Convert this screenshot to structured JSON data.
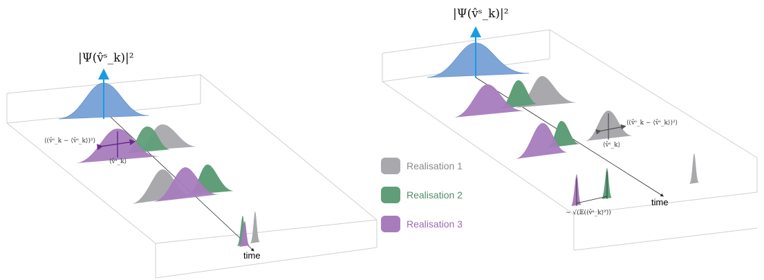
{
  "left_panel": {
    "axis_label": "|Ψ(v̂ˢ_k)|²",
    "spread_label": "⟨(v̂ˢ_k − ⟨v̂ˢ_k⟩)²⟩",
    "mean_label": "⟨v̂ˢ_k⟩",
    "time_label": "time"
  },
  "right_panel": {
    "axis_label": "|Ψ(v̂ˢ_k)|²",
    "spread_label": "⟨(v̂ˢ_k − ⟨v̂ˢ_k⟩)²⟩",
    "mean_label": "⟨v̂ˢ_k⟩",
    "time_label": "time",
    "scaling_label": "∼ √(𝔼(⟨v̂ˢ_k⟩²))"
  },
  "legend": [
    {
      "label": "Realisation 1",
      "color": "#a9a8ad"
    },
    {
      "label": "Realisation 2",
      "color": "#5f9e78"
    },
    {
      "label": "Realisation 3",
      "color": "#a77cbd"
    }
  ],
  "colors": {
    "initial": "#7ea5d8",
    "axis_arrow": "#1a9be0",
    "realisation_1": "#a9a8ad",
    "realisation_2": "#5f9e78",
    "realisation_3": "#a77cbd",
    "box_edge": "#cfcfcf"
  }
}
